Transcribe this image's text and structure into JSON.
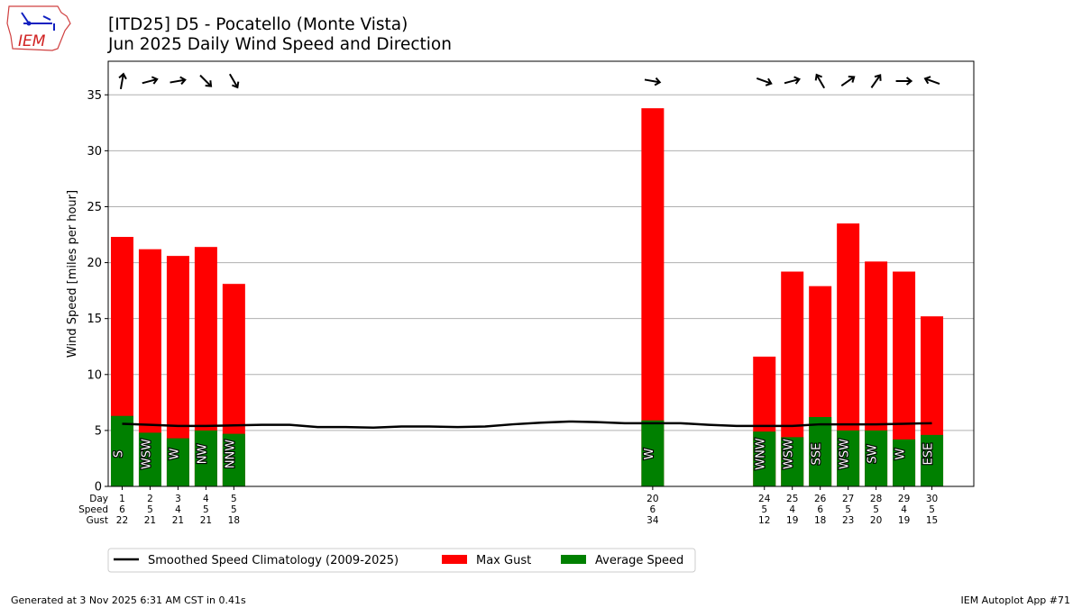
{
  "title_line1": "[ITD25] D5 - Pocatello (Monte Vista)",
  "title_line2": "Jun 2025 Daily Wind Speed and Direction",
  "logo_text": "IEM",
  "footer_left": "Generated at 3 Nov 2025 6:31 AM CST in 0.41s",
  "footer_right": "IEM Autoplot App #71",
  "chart_data": {
    "type": "bar",
    "ylabel": "Wind Speed [miles per hour]",
    "ylim": [
      0,
      38
    ],
    "xlim": [
      0.5,
      31.5
    ],
    "yticks": [
      0,
      5,
      10,
      15,
      20,
      25,
      30,
      35
    ],
    "grid": true,
    "legend_placement": "bottom-left",
    "row_labels": [
      "Day",
      "Speed",
      "Gust"
    ],
    "days": [
      1,
      2,
      3,
      4,
      5,
      20,
      24,
      25,
      26,
      27,
      28,
      29,
      30
    ],
    "avg_speed": [
      6.3,
      4.8,
      4.3,
      5.0,
      4.7,
      5.9,
      4.9,
      4.4,
      6.2,
      5.0,
      5.0,
      4.2,
      4.6
    ],
    "max_gust": [
      22.3,
      21.2,
      20.6,
      21.4,
      18.1,
      33.8,
      11.6,
      19.2,
      17.9,
      23.5,
      20.1,
      19.2,
      15.2
    ],
    "speed_labels": [
      "6",
      "5",
      "4",
      "5",
      "5",
      "6",
      "5",
      "4",
      "6",
      "5",
      "5",
      "4",
      "5"
    ],
    "gust_labels": [
      "22",
      "21",
      "21",
      "21",
      "18",
      "34",
      "12",
      "19",
      "18",
      "23",
      "20",
      "19",
      "15"
    ],
    "direction_labels": [
      "S",
      "WSW",
      "W",
      "NW",
      "NNW",
      "W",
      "WNW",
      "WSW",
      "SSE",
      "WSW",
      "SW",
      "W",
      "ESE"
    ],
    "direction_degrees": [
      190,
      255,
      260,
      315,
      330,
      280,
      290,
      255,
      150,
      235,
      215,
      270,
      110
    ],
    "climatology": {
      "days": [
        1,
        2,
        3,
        4,
        5,
        6,
        7,
        8,
        9,
        10,
        11,
        12,
        13,
        14,
        15,
        16,
        17,
        18,
        19,
        20,
        21,
        22,
        23,
        24,
        25,
        26,
        27,
        28,
        29,
        30
      ],
      "values": [
        5.6,
        5.5,
        5.4,
        5.4,
        5.45,
        5.5,
        5.5,
        5.3,
        5.3,
        5.25,
        5.35,
        5.35,
        5.3,
        5.35,
        5.55,
        5.7,
        5.8,
        5.75,
        5.65,
        5.65,
        5.65,
        5.5,
        5.4,
        5.4,
        5.4,
        5.55,
        5.55,
        5.55,
        5.6,
        5.65
      ]
    },
    "series": [
      {
        "name": "Smoothed Speed Climatology (2009-2025)",
        "color": "#000000"
      },
      {
        "name": "Max Gust",
        "color": "#ff0000"
      },
      {
        "name": "Average Speed",
        "color": "#008000"
      }
    ]
  }
}
